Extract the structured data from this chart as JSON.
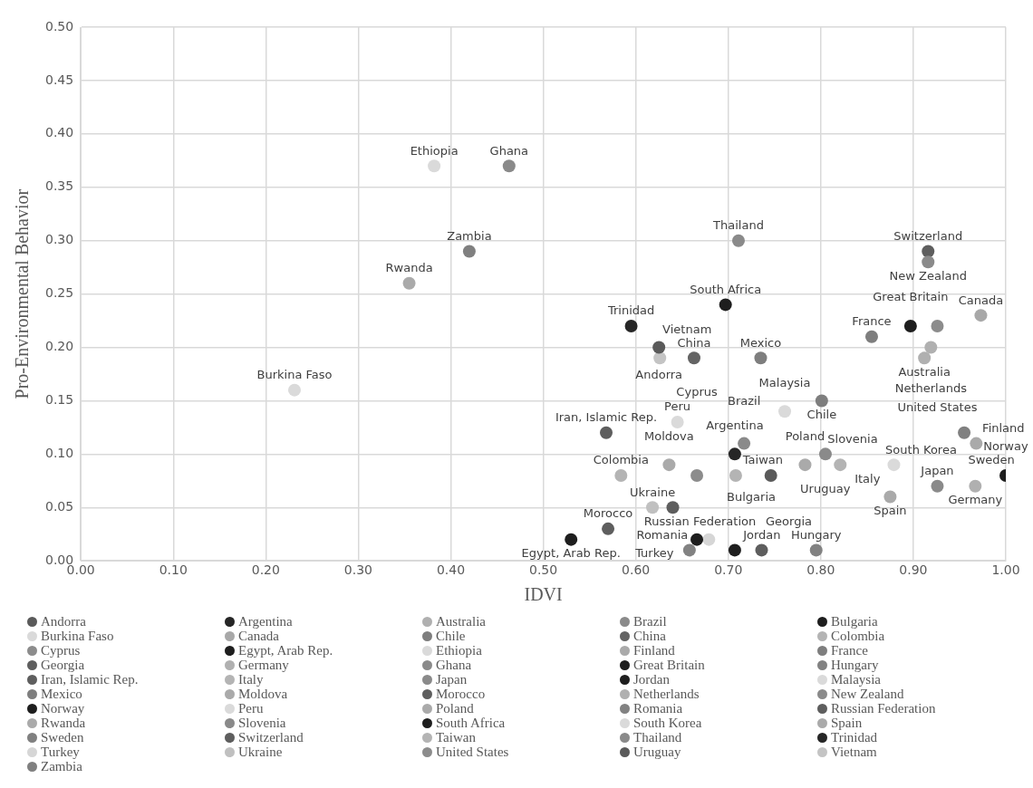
{
  "chart_data": {
    "type": "scatter",
    "xlabel": "IDVI",
    "ylabel": "Pro-Environmental Behavior",
    "xlim": [
      0,
      1
    ],
    "ylim": [
      0,
      0.5
    ],
    "xticks": [
      {
        "value": 0,
        "label": "0.00"
      },
      {
        "value": 0.1,
        "label": "0.10"
      },
      {
        "value": 0.2,
        "label": "0.20"
      },
      {
        "value": 0.3,
        "label": "0.30"
      },
      {
        "value": 0.4,
        "label": "0.40"
      },
      {
        "value": 0.5,
        "label": "0.50"
      },
      {
        "value": 0.6,
        "label": "0.60"
      },
      {
        "value": 0.7,
        "label": "0.70"
      },
      {
        "value": 0.8,
        "label": "0.80"
      },
      {
        "value": 0.9,
        "label": "0.90"
      },
      {
        "value": 1,
        "label": "1.00"
      }
    ],
    "yticks": [
      {
        "value": 0,
        "label": "0.00"
      },
      {
        "value": 0.05,
        "label": "0.05"
      },
      {
        "value": 0.1,
        "label": "0.10"
      },
      {
        "value": 0.15,
        "label": "0.15"
      },
      {
        "value": 0.2,
        "label": "0.20"
      },
      {
        "value": 0.25,
        "label": "0.25"
      },
      {
        "value": 0.3,
        "label": "0.30"
      },
      {
        "value": 0.35,
        "label": "0.35"
      },
      {
        "value": 0.4,
        "label": "0.40"
      },
      {
        "value": 0.45,
        "label": "0.45"
      },
      {
        "value": 0.5,
        "label": "0.50"
      }
    ],
    "grid": true,
    "legend": "bottom",
    "marker": "circle",
    "series": [
      {
        "name": "Andorra",
        "color": "#5a5a5a",
        "x": [
          0.625
        ],
        "values": [
          0.2
        ]
      },
      {
        "name": "Argentina",
        "color": "#262626",
        "x": [
          0.707
        ],
        "values": [
          0.1
        ]
      },
      {
        "name": "Australia",
        "color": "#b0b0b0",
        "x": [
          0.912
        ],
        "values": [
          0.19
        ]
      },
      {
        "name": "Brazil",
        "color": "#8a8a8a",
        "x": [
          0.717
        ],
        "values": [
          0.11
        ]
      },
      {
        "name": "Bulgaria",
        "color": "#1e1e1e",
        "x": [
          0.666
        ],
        "values": [
          0.02
        ]
      },
      {
        "name": "Burkina Faso",
        "color": "#dadada",
        "x": [
          0.231
        ],
        "values": [
          0.16
        ]
      },
      {
        "name": "Canada",
        "color": "#a8a8a8",
        "x": [
          0.973
        ],
        "values": [
          0.23
        ]
      },
      {
        "name": "Chile",
        "color": "#7e7e7e",
        "x": [
          0.801
        ],
        "values": [
          0.15
        ]
      },
      {
        "name": "China",
        "color": "#646464",
        "x": [
          0.663
        ],
        "values": [
          0.19
        ]
      },
      {
        "name": "Colombia",
        "color": "#b4b4b4",
        "x": [
          0.584
        ],
        "values": [
          0.08
        ]
      },
      {
        "name": "Cyprus",
        "color": "#8c8c8c",
        "x": [
          0.666
        ],
        "values": [
          0.08
        ]
      },
      {
        "name": "Egypt, Arab Rep.",
        "color": "#1e1e1e",
        "x": [
          0.53
        ],
        "values": [
          0.02
        ]
      },
      {
        "name": "Ethiopia",
        "color": "#dadada",
        "x": [
          0.382
        ],
        "values": [
          0.37
        ]
      },
      {
        "name": "Finland",
        "color": "#aaaaaa",
        "x": [
          0.968
        ],
        "values": [
          0.11
        ]
      },
      {
        "name": "France",
        "color": "#7e7e7e",
        "x": [
          0.855
        ],
        "values": [
          0.21
        ]
      },
      {
        "name": "Georgia",
        "color": "#5e5e5e",
        "x": [
          0.736
        ],
        "values": [
          0.01
        ]
      },
      {
        "name": "Germany",
        "color": "#b0b0b0",
        "x": [
          0.967
        ],
        "values": [
          0.07
        ]
      },
      {
        "name": "Ghana",
        "color": "#8a8a8a",
        "x": [
          0.463
        ],
        "values": [
          0.37
        ]
      },
      {
        "name": "Great Britain",
        "color": "#1e1e1e",
        "x": [
          0.897
        ],
        "values": [
          0.22
        ]
      },
      {
        "name": "Hungary",
        "color": "#828282",
        "x": [
          0.795
        ],
        "values": [
          0.01
        ]
      },
      {
        "name": "Iran, Islamic Rep.",
        "color": "#5e5e5e",
        "x": [
          0.568
        ],
        "values": [
          0.12
        ]
      },
      {
        "name": "Italy",
        "color": "#b4b4b4",
        "x": [
          0.821
        ],
        "values": [
          0.09
        ]
      },
      {
        "name": "Japan",
        "color": "#8a8a8a",
        "x": [
          0.926
        ],
        "values": [
          0.07
        ]
      },
      {
        "name": "Jordan",
        "color": "#1e1e1e",
        "x": [
          0.707
        ],
        "values": [
          0.01
        ]
      },
      {
        "name": "Malaysia",
        "color": "#dadada",
        "x": [
          0.761
        ],
        "values": [
          0.14
        ]
      },
      {
        "name": "Mexico",
        "color": "#7e7e7e",
        "x": [
          0.735
        ],
        "values": [
          0.19
        ]
      },
      {
        "name": "Moldova",
        "color": "#aaaaaa",
        "x": [
          0.636
        ],
        "values": [
          0.09
        ]
      },
      {
        "name": "Morocco",
        "color": "#5e5e5e",
        "x": [
          0.57
        ],
        "values": [
          0.03
        ]
      },
      {
        "name": "Netherlands",
        "color": "#b0b0b0",
        "x": [
          0.919
        ],
        "values": [
          0.2
        ]
      },
      {
        "name": "New Zealand",
        "color": "#8a8a8a",
        "x": [
          0.916
        ],
        "values": [
          0.28
        ]
      },
      {
        "name": "Norway",
        "color": "#1e1e1e",
        "x": [
          1.0
        ],
        "values": [
          0.08
        ]
      },
      {
        "name": "Peru",
        "color": "#dadada",
        "x": [
          0.645
        ],
        "values": [
          0.13
        ]
      },
      {
        "name": "Poland",
        "color": "#aaaaaa",
        "x": [
          0.783
        ],
        "values": [
          0.09
        ]
      },
      {
        "name": "Romania",
        "color": "#828282",
        "x": [
          0.658
        ],
        "values": [
          0.01
        ]
      },
      {
        "name": "Russian Federation",
        "color": "#5e5e5e",
        "x": [
          0.64
        ],
        "values": [
          0.05
        ]
      },
      {
        "name": "Rwanda",
        "color": "#aaaaaa",
        "x": [
          0.355
        ],
        "values": [
          0.26
        ]
      },
      {
        "name": "Slovenia",
        "color": "#8a8a8a",
        "x": [
          0.805
        ],
        "values": [
          0.1
        ]
      },
      {
        "name": "South Africa",
        "color": "#1e1e1e",
        "x": [
          0.697
        ],
        "values": [
          0.24
        ]
      },
      {
        "name": "South Korea",
        "color": "#dadada",
        "x": [
          0.879
        ],
        "values": [
          0.09
        ]
      },
      {
        "name": "Spain",
        "color": "#aaaaaa",
        "x": [
          0.875
        ],
        "values": [
          0.06
        ]
      },
      {
        "name": "Sweden",
        "color": "#808080",
        "x": [
          0.955
        ],
        "values": [
          0.12
        ]
      },
      {
        "name": "Switzerland",
        "color": "#5e5e5e",
        "x": [
          0.916
        ],
        "values": [
          0.29
        ]
      },
      {
        "name": "Taiwan",
        "color": "#b4b4b4",
        "x": [
          0.708
        ],
        "values": [
          0.08
        ]
      },
      {
        "name": "Thailand",
        "color": "#8a8a8a",
        "x": [
          0.711
        ],
        "values": [
          0.3
        ]
      },
      {
        "name": "Trinidad",
        "color": "#262626",
        "x": [
          0.595
        ],
        "values": [
          0.22
        ]
      },
      {
        "name": "Turkey",
        "color": "#d6d6d6",
        "x": [
          0.679
        ],
        "values": [
          0.02
        ]
      },
      {
        "name": "Ukraine",
        "color": "#c0c0c0",
        "x": [
          0.618
        ],
        "values": [
          0.05
        ]
      },
      {
        "name": "United States",
        "color": "#8c8c8c",
        "x": [
          0.926
        ],
        "values": [
          0.22
        ]
      },
      {
        "name": "Uruguay",
        "color": "#5a5a5a",
        "x": [
          0.746
        ],
        "values": [
          0.08
        ]
      },
      {
        "name": "Vietnam",
        "color": "#c4c4c4",
        "x": [
          0.626
        ],
        "values": [
          0.19
        ]
      },
      {
        "name": "Zambia",
        "color": "#808080",
        "x": [
          0.42
        ],
        "values": [
          0.29
        ]
      }
    ]
  }
}
